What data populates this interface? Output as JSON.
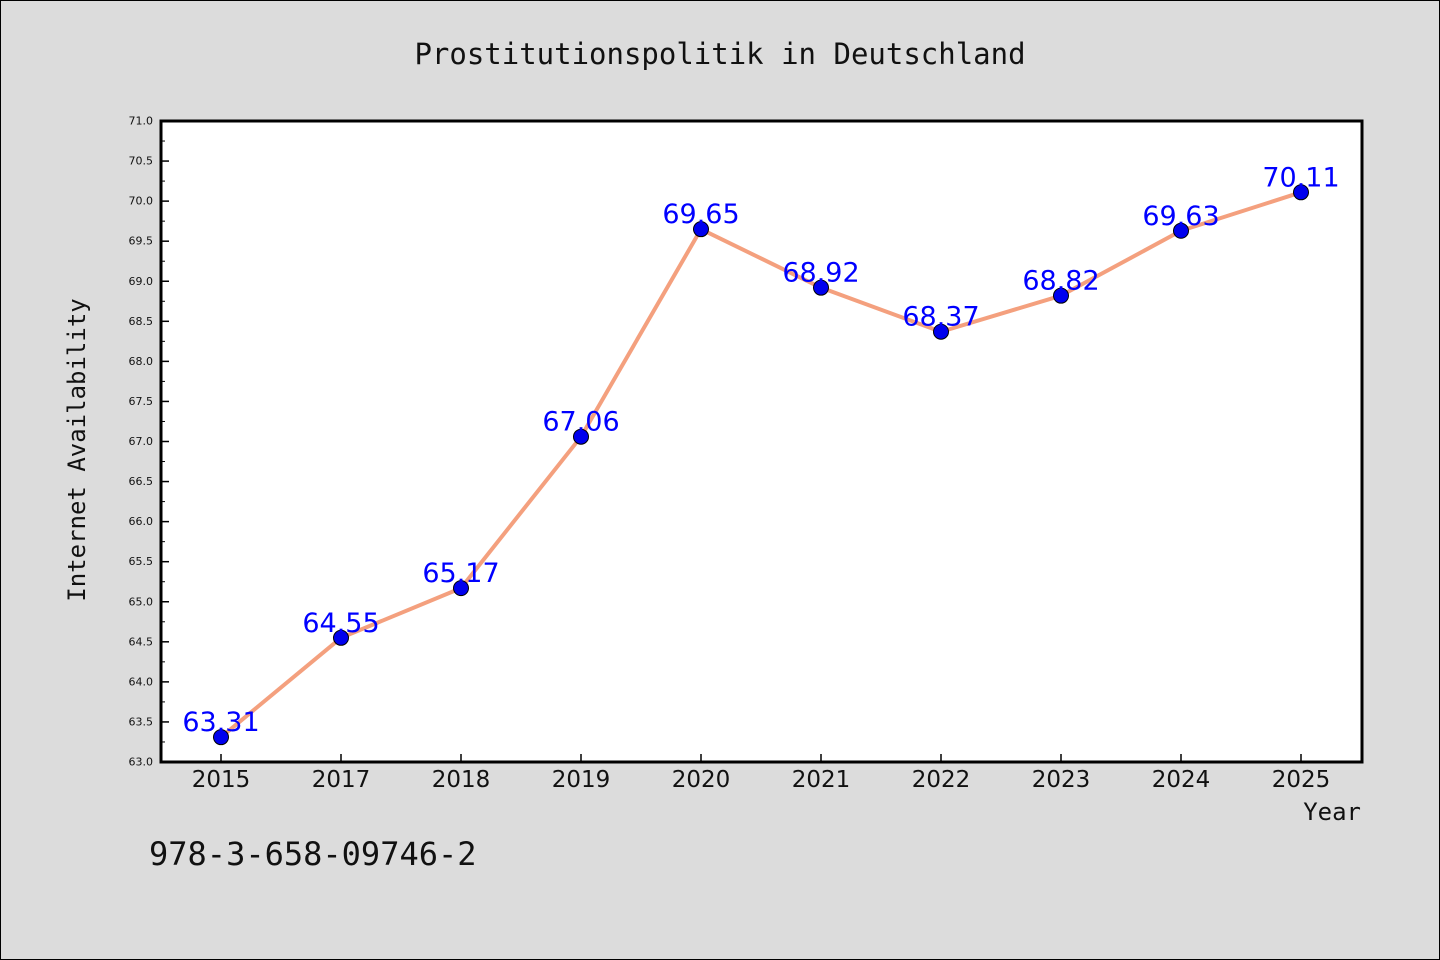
{
  "chart_data": {
    "type": "line",
    "title": "Prostitutionspolitik in Deutschland",
    "xlabel": "Year",
    "ylabel": "Internet Availability",
    "categories": [
      "2015",
      "2017",
      "2018",
      "2019",
      "2020",
      "2021",
      "2022",
      "2023",
      "2024",
      "2025"
    ],
    "values": [
      63.31,
      64.55,
      65.17,
      67.06,
      69.65,
      68.92,
      68.37,
      68.82,
      69.63,
      70.11
    ],
    "data_labels": [
      "63.31",
      "64.55",
      "65.17",
      "67.06",
      "69.65",
      "68.92",
      "68.37",
      "68.82",
      "69.63",
      "70.11"
    ],
    "ylim": [
      63.0,
      71.0
    ],
    "yticks": [
      "63.0",
      "63.5",
      "64.0",
      "64.5",
      "65.0",
      "65.5",
      "66.0",
      "66.5",
      "67.0",
      "67.5",
      "68.0",
      "68.5",
      "69.0",
      "69.5",
      "70.0",
      "70.5",
      "71.0"
    ],
    "grid": false,
    "colors": {
      "line": "#f4a07e",
      "marker": "#0000ee",
      "label": "#0000ff",
      "background": "#dcdcdc",
      "plot_background": "#ffffff"
    }
  },
  "footer": {
    "isbn": "978-3-658-09746-2"
  }
}
